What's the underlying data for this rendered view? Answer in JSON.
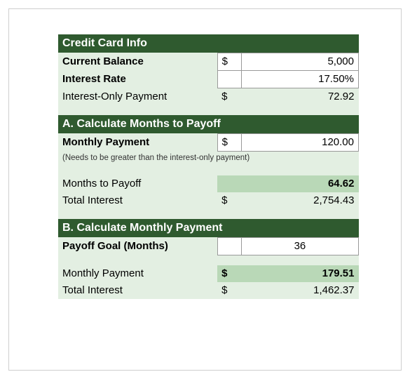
{
  "colors": {
    "header_bg": "#2f5a2f",
    "header_text": "#ffffff",
    "light_bg": "#e3efe2",
    "mid_bg": "#b9d8b7",
    "input_bg": "#ffffff",
    "input_border": "#999999",
    "frame_border": "#cfcfcf",
    "body_text": "#000000",
    "note_text": "#333333"
  },
  "fonts": {
    "family": "Verdana, Geneva, sans-serif",
    "base_size": 15,
    "header_size": 16,
    "note_size": 11.5
  },
  "layout": {
    "col_widths_pct": [
      53,
      8,
      39
    ]
  },
  "section1": {
    "title": "Credit Card Info",
    "current_balance_label": "Current Balance",
    "current_balance_sym": "$",
    "current_balance_val": "5,000",
    "interest_rate_label": "Interest Rate",
    "interest_rate_val": "17.50%",
    "interest_only_label": "Interest-Only Payment",
    "interest_only_sym": "$",
    "interest_only_val": "72.92"
  },
  "section2": {
    "title": "A. Calculate Months to Payoff",
    "monthly_payment_label": "Monthly Payment",
    "monthly_payment_sym": "$",
    "monthly_payment_val": "120.00",
    "note": "(Needs to be greater than the interest-only payment)",
    "months_to_payoff_label": "Months to Payoff",
    "months_to_payoff_val": "64.62",
    "total_interest_label": "Total Interest",
    "total_interest_sym": "$",
    "total_interest_val": "2,754.43"
  },
  "section3": {
    "title": "B. Calculate Monthly Payment",
    "payoff_goal_label": "Payoff Goal (Months)",
    "payoff_goal_val": "36",
    "monthly_payment_label": "Monthly Payment",
    "monthly_payment_sym": "$",
    "monthly_payment_val": "179.51",
    "total_interest_label": "Total Interest",
    "total_interest_sym": "$",
    "total_interest_val": "1,462.37"
  }
}
